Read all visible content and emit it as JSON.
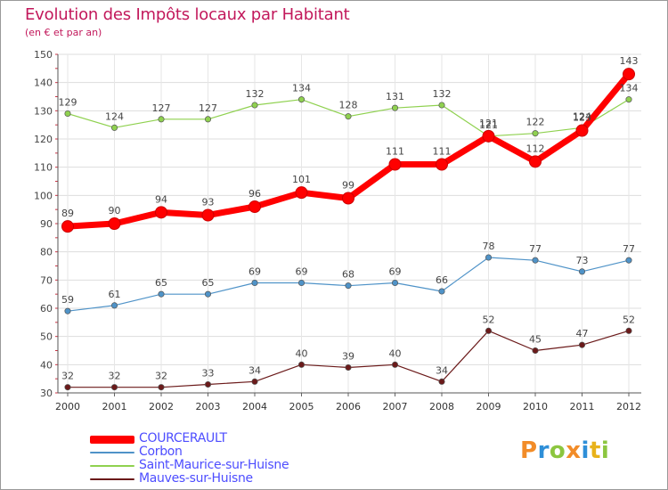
{
  "header": {
    "title": "Evolution des Impôts locaux par Habitant",
    "subtitle": "(en € et par an)"
  },
  "logo": {
    "text": "Proxiti"
  },
  "chart_data": {
    "type": "line",
    "title": "Evolution des Impôts locaux par Habitant",
    "subtitle": "(en € et par an)",
    "x": [
      "2000",
      "2001",
      "2002",
      "2003",
      "2004",
      "2005",
      "2006",
      "2007",
      "2008",
      "2009",
      "2010",
      "2011",
      "2012"
    ],
    "ylim": [
      30,
      150
    ],
    "yticks": [
      30,
      40,
      50,
      60,
      70,
      80,
      90,
      100,
      110,
      120,
      130,
      140,
      150
    ],
    "grid": true,
    "legend_position": "bottom-left",
    "series": [
      {
        "name": "COURCERAULT",
        "color": "#ff0000",
        "values": [
          89,
          90,
          94,
          93,
          96,
          101,
          99,
          111,
          111,
          121,
          112,
          123,
          143
        ]
      },
      {
        "name": "Corbon",
        "color": "#4f93c8",
        "values": [
          59,
          61,
          65,
          65,
          69,
          69,
          68,
          69,
          66,
          78,
          77,
          73,
          77
        ]
      },
      {
        "name": "Saint-Maurice-sur-Huisne",
        "color": "#8fd14f",
        "values": [
          129,
          124,
          127,
          127,
          132,
          134,
          128,
          131,
          132,
          121,
          122,
          124,
          134
        ]
      },
      {
        "name": "Mauves-sur-Huisne",
        "color": "#6b1a1a",
        "values": [
          32,
          32,
          32,
          33,
          34,
          40,
          39,
          40,
          34,
          52,
          45,
          47,
          52
        ]
      }
    ]
  }
}
